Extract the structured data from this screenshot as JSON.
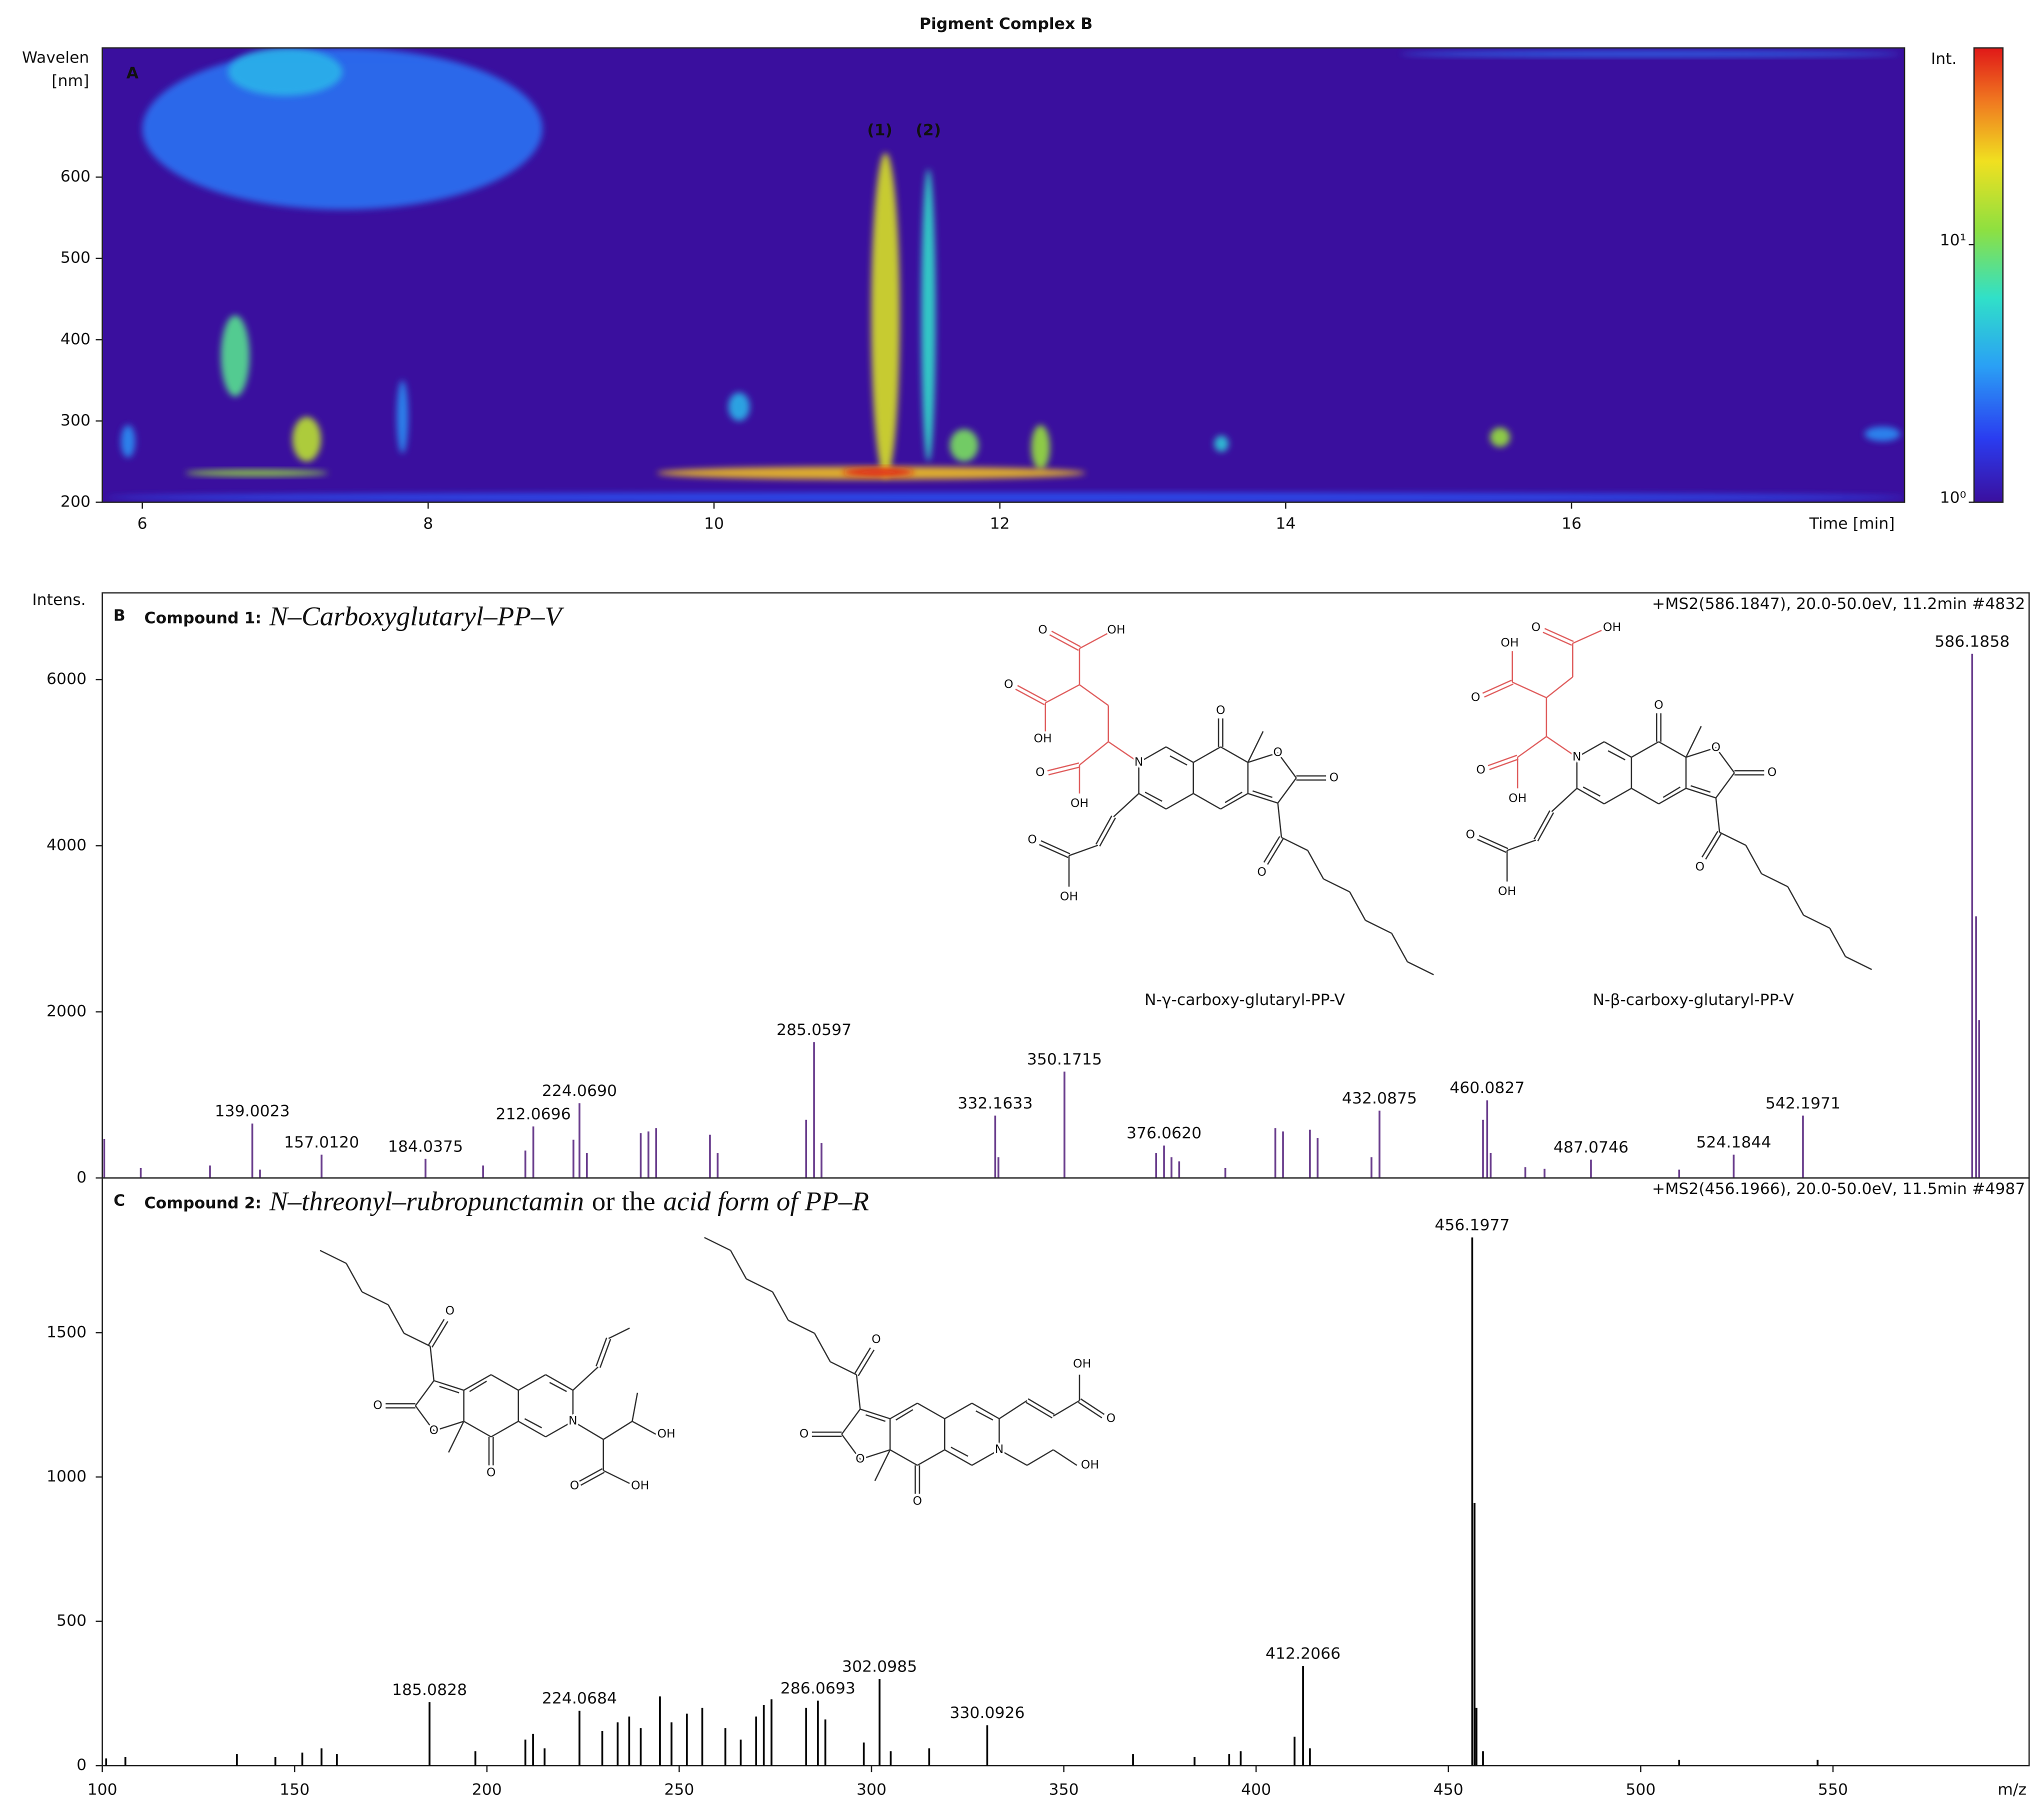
{
  "chart_data": [
    {
      "type": "heatmap",
      "title": "Pigment Complex B",
      "panel_label": "A",
      "ylabel": [
        "Wavelen",
        "[nm]"
      ],
      "xlabel": "Time [min]",
      "xlim": [
        5.72,
        18.33
      ],
      "ylim": [
        200,
        759
      ],
      "xticks": [
        6,
        8,
        10,
        12,
        14,
        16
      ],
      "yticks": [
        200,
        300,
        400,
        500,
        600
      ],
      "annotations": [
        {
          "text": "(1)",
          "x": 11.16,
          "y": 657
        },
        {
          "text": "(2)",
          "x": 11.5,
          "y": 657
        }
      ],
      "colorbar": {
        "label": "Int.",
        "zlim": [
          1,
          58
        ],
        "scale": "log",
        "ticks": [
          {
            "value": 1,
            "label": "10⁰"
          },
          {
            "value": 10,
            "label": "10¹"
          }
        ]
      },
      "spots": {
        "x_low": [
          6.0,
          6.6,
          6.55,
          7.05,
          6.3,
          11.1,
          11.45,
          11.65,
          12.22,
          9.6,
          10.9,
          10.1,
          13.5,
          15.43,
          18.05,
          7.78,
          5.85,
          5.75,
          14.8
        ],
        "x_high": [
          8.8,
          7.4,
          6.75,
          7.25,
          7.3,
          11.3,
          11.55,
          11.85,
          12.35,
          12.6,
          11.4,
          10.25,
          13.6,
          15.57,
          18.3,
          7.86,
          5.95,
          18.33,
          18.3
        ],
        "y_low": [
          560,
          700,
          330,
          250,
          232,
          230,
          250,
          250,
          240,
          228,
          232,
          300,
          262,
          268,
          275,
          260,
          255,
          200,
          748
        ],
        "y_high": [
          759,
          759,
          430,
          305,
          240,
          630,
          610,
          290,
          295,
          244,
          242,
          335,
          282,
          292,
          293,
          350,
          295,
          212,
          755
        ],
        "values": [
          2.5,
          4,
          8,
          15,
          12,
          18,
          6,
          10,
          12,
          25,
          58,
          4,
          5,
          12,
          3,
          3,
          3,
          2,
          2.5
        ]
      }
    },
    {
      "type": "spectrum",
      "panel_label": "B",
      "title_prefix": "Compound 1:",
      "title": [
        "N–Carboxyglutaryl–PP–V"
      ],
      "subtitle": "+MS2(586.1847), 20.0-50.0eV, 11.2min #4832",
      "ylabel": "Intens.",
      "color": "#6b3f8e",
      "highlight_color": "#e06060",
      "xlim": [
        100,
        601
      ],
      "ylim": [
        0,
        7044
      ],
      "yticks": [
        0,
        2000,
        4000,
        6000
      ],
      "peaks": {
        "x": [
          139.0023,
          157.012,
          184.0375,
          212.0696,
          224.069,
          285.0597,
          332.1633,
          350.1715,
          376.062,
          432.0875,
          460.0827,
          487.0746,
          524.1844,
          542.1971,
          586.1858
        ],
        "values": [
          655,
          280,
          230,
          620,
          900,
          1635,
          750,
          1280,
          390,
          810,
          935,
          220,
          280,
          750,
          6310
        ],
        "labels": [
          "139.0023",
          "157.0120",
          "184.0375",
          "212.0696",
          "224.0690",
          "285.0597",
          "332.1633",
          "350.1715",
          "376.0620",
          "432.0875",
          "460.0827",
          "487.0746",
          "524.1844",
          "542.1971",
          "586.1858"
        ]
      },
      "minor_peaks": {
        "x": [
          100.5,
          110,
          128,
          141,
          199,
          210,
          222.5,
          226,
          240,
          242,
          244,
          258,
          260,
          283,
          287,
          333,
          374,
          378,
          380,
          392,
          405,
          407,
          414,
          416,
          430,
          459,
          461,
          470,
          475,
          510,
          587.2,
          588
        ],
        "values": [
          470,
          120,
          150,
          100,
          150,
          330,
          460,
          300,
          540,
          560,
          600,
          520,
          300,
          700,
          420,
          250,
          300,
          250,
          200,
          120,
          600,
          560,
          580,
          480,
          250,
          700,
          300,
          130,
          110,
          100,
          3150,
          1900
        ]
      },
      "structures": [
        {
          "caption": "N-γ-carboxy-glutaryl-PP-V",
          "atoms": [
            "N",
            "O",
            "O",
            "O",
            "O",
            "O",
            "OH",
            "O",
            "OH",
            "O",
            "OH",
            "O",
            "OH"
          ]
        },
        {
          "caption": "N-β-carboxy-glutaryl-PP-V",
          "atoms": [
            "N",
            "O",
            "O",
            "O",
            "O",
            "O",
            "OH",
            "O",
            "OH",
            "O",
            "OH",
            "O",
            "OH"
          ]
        }
      ]
    },
    {
      "type": "spectrum",
      "panel_label": "C",
      "title_prefix": "Compound 2:",
      "title": [
        "N–threonyl–rubropunctamin",
        "or the",
        "acid form of PP–R"
      ],
      "subtitle": "+MS2(456.1966), 20.0-50.0eV, 11.5min #4987",
      "color": "#000000",
      "xlabel": "m/z",
      "xlim": [
        100,
        601
      ],
      "ylim": [
        0,
        2036
      ],
      "yticks": [
        0,
        500,
        1000,
        1500
      ],
      "xticks": [
        100,
        150,
        200,
        250,
        300,
        350,
        400,
        450,
        500,
        550
      ],
      "peaks": {
        "x": [
          185.0828,
          224.0684,
          286.0693,
          302.0985,
          330.0926,
          412.2066,
          456.1977
        ],
        "values": [
          220,
          190,
          225,
          300,
          140,
          345,
          1830
        ],
        "labels": [
          "185.0828",
          "224.0684",
          "286.0693",
          "302.0985",
          "330.0926",
          "412.2066",
          "456.1977"
        ]
      },
      "minor_peaks": {
        "x": [
          101,
          106,
          135,
          145,
          152,
          157,
          161,
          197,
          210,
          212,
          215,
          230,
          234,
          237,
          240,
          245,
          248,
          252,
          256,
          262,
          266,
          270,
          272,
          274,
          283,
          288,
          298,
          305,
          315,
          368,
          384,
          393,
          396,
          410,
          414,
          456.8,
          457.3,
          459,
          510,
          546
        ],
        "values": [
          25,
          30,
          40,
          30,
          45,
          60,
          40,
          50,
          90,
          110,
          60,
          120,
          150,
          170,
          130,
          240,
          150,
          180,
          200,
          130,
          90,
          170,
          210,
          230,
          200,
          160,
          80,
          50,
          60,
          40,
          30,
          40,
          50,
          100,
          60,
          910,
          200,
          50,
          20,
          20
        ]
      },
      "structures": [
        {
          "atoms": [
            "N",
            "O",
            "O",
            "O",
            "O",
            "OH",
            "O",
            "OH"
          ]
        },
        {
          "atoms": [
            "N",
            "O",
            "O",
            "O",
            "O",
            "OH",
            "OH",
            "O"
          ]
        }
      ]
    }
  ]
}
